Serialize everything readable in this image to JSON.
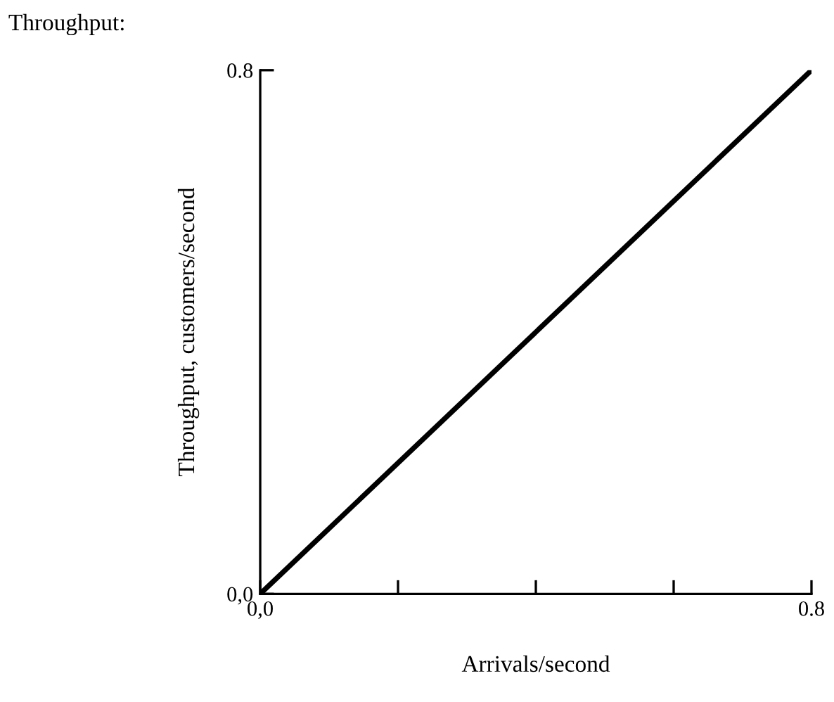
{
  "chart_data": {
    "type": "line",
    "title": "Throughput:",
    "xlabel": "Arrivals/second",
    "ylabel": "Throughput, customers/second",
    "x": [
      0,
      0.8
    ],
    "series": [
      {
        "color": "#000000",
        "values": [
          0,
          0.8
        ]
      }
    ],
    "xlim": [
      0,
      0.8
    ],
    "ylim": [
      0,
      0.8
    ],
    "xticks": [
      {
        "value": 0,
        "label": "0,0"
      },
      {
        "value": 0.2,
        "label": null
      },
      {
        "value": 0.4,
        "label": null
      },
      {
        "value": 0.6,
        "label": null
      },
      {
        "value": 0.8,
        "label": "0.8"
      }
    ],
    "yticks": [
      {
        "value": 0,
        "label": "0,0"
      },
      {
        "value": 0.8,
        "label": "0.8"
      }
    ],
    "grid": false,
    "legend": false,
    "marker": "none",
    "line_style": "solid"
  }
}
